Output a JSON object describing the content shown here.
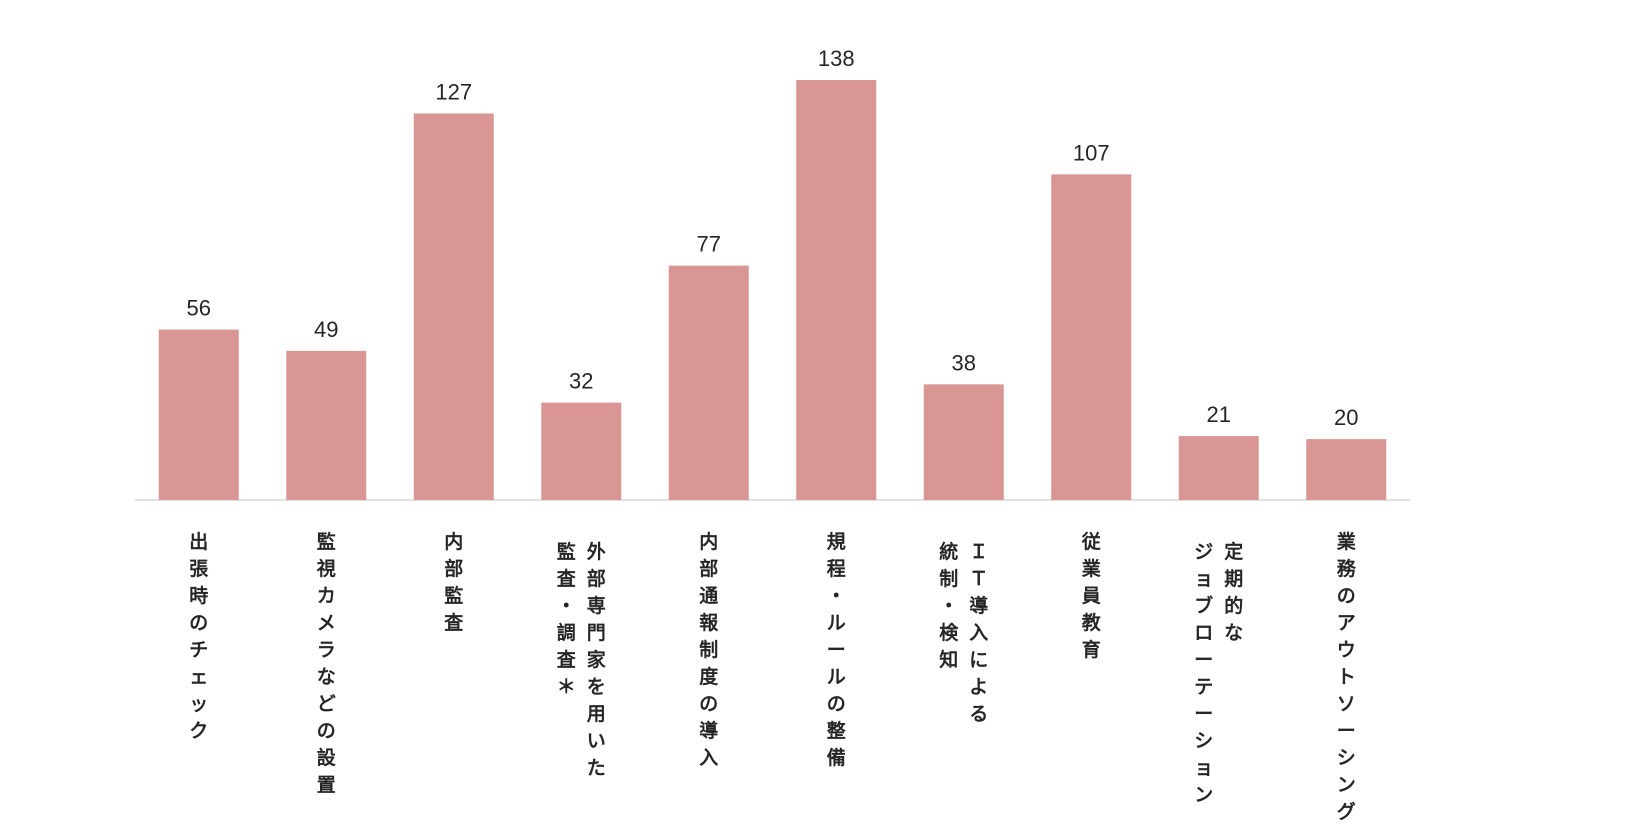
{
  "chart_data": {
    "type": "bar",
    "title": "",
    "xlabel": "",
    "ylabel": "",
    "ylim": [
      0,
      138
    ],
    "grid": false,
    "legend": "none",
    "bar_color": "#d99694",
    "categories": [
      {
        "lines": [
          "出張時のチェック"
        ]
      },
      {
        "lines": [
          "監視カメラなどの設置"
        ]
      },
      {
        "lines": [
          "内部監査"
        ]
      },
      {
        "lines": [
          "外部専門家を用いた",
          "監査・調査＊"
        ]
      },
      {
        "lines": [
          "内部通報制度の導入"
        ]
      },
      {
        "lines": [
          "規程・ルールの整備"
        ]
      },
      {
        "lines": [
          "ＩＴ導入による",
          "統制・検知"
        ]
      },
      {
        "lines": [
          "従業員教育"
        ]
      },
      {
        "lines": [
          "定期的な",
          "ジョブローテーション"
        ]
      },
      {
        "lines": [
          "業務のアウトソーシング"
        ]
      }
    ],
    "values": [
      56,
      49,
      127,
      32,
      77,
      138,
      38,
      107,
      21,
      20
    ]
  }
}
